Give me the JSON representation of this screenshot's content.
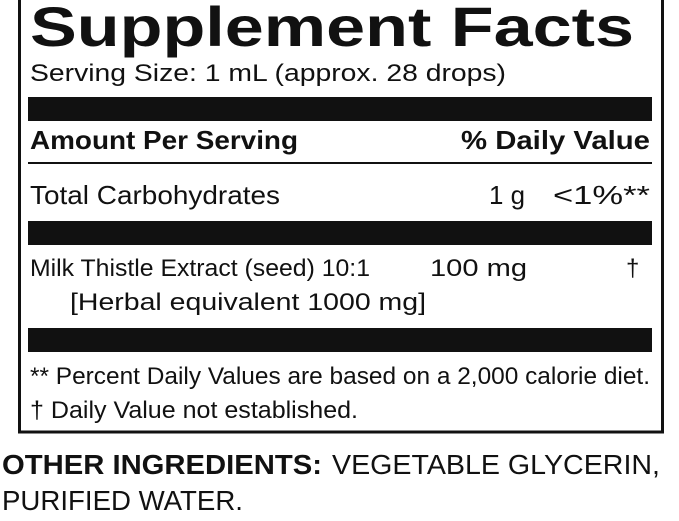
{
  "header": {
    "title": "Supplement Facts",
    "serving_size": "Serving Size: 1 mL (approx. 28 drops)"
  },
  "table": {
    "header": [
      "Amount Per Serving",
      "% Daily Value"
    ],
    "rows": [
      {
        "name": "Total Carbohydrates",
        "amount": "1 g",
        "daily_value": "<1%**"
      },
      {
        "name": "Milk Thistle Extract (seed) 10:1",
        "note": "[Herbal equivalent 1000 mg]",
        "amount": "100 mg",
        "daily_value": "†"
      }
    ]
  },
  "footnotes": [
    "** Percent Daily Values are based on a 2,000 calorie diet.",
    "† Daily Value not established."
  ],
  "other_ingredients": {
    "label": "OTHER INGREDIENTS:",
    "lines": [
      "VEGETABLE GLYCERIN,",
      "PURIFIED WATER."
    ]
  }
}
